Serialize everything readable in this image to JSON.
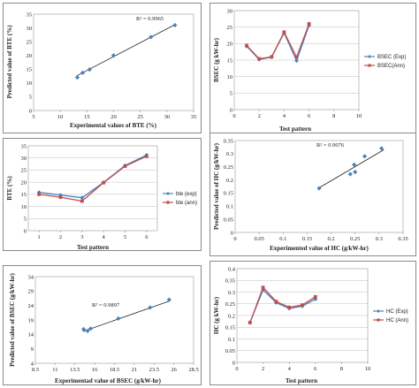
{
  "chart_data": [
    {
      "id": "c1",
      "type": "scatter",
      "xlabel": "Experimental values of BTE (%)",
      "ylabel": "Predicted value of BTE (%)",
      "annotation": "R² = 0.9965",
      "xlim": [
        5,
        35
      ],
      "ylim": [
        0,
        35
      ],
      "xticks": [
        "5",
        "10",
        "15",
        "20",
        "25",
        "30",
        "35"
      ],
      "yticks": [
        "0",
        "5",
        "10",
        "15",
        "20",
        "25",
        "30",
        "35"
      ],
      "points": [
        [
          13.2,
          12.0
        ],
        [
          14.2,
          13.7
        ],
        [
          15.5,
          14.9
        ],
        [
          20.0,
          20.0
        ],
        [
          27.0,
          26.7
        ],
        [
          31.5,
          31.0
        ]
      ],
      "trendline": [
        [
          13.0,
          12.5
        ],
        [
          31.5,
          31.2
        ]
      ],
      "marker_color": "#4f81bd",
      "line_color": "#222222"
    },
    {
      "id": "c2",
      "type": "line",
      "xlabel": "Test  pattern",
      "ylabel": "BSEC (g kW-hr)",
      "xlim": [
        0,
        10
      ],
      "ylim": [
        0,
        30
      ],
      "xticks": [
        "0",
        "2",
        "4",
        "6",
        "8",
        "10"
      ],
      "yticks": [
        "0",
        "5",
        "10",
        "15",
        "20",
        "25",
        "30"
      ],
      "series": [
        {
          "name": "BSEC (Exp)",
          "color": "#4f81bd",
          "marker": "diamond",
          "x": [
            1,
            2,
            3,
            4,
            5,
            6
          ],
          "values": [
            19.2,
            15.2,
            15.9,
            23.2,
            14.8,
            25.5
          ]
        },
        {
          "name": "BSEC(Ann)",
          "color": "#c0504d",
          "marker": "square",
          "x": [
            1,
            2,
            3,
            4,
            5,
            6
          ],
          "values": [
            19.4,
            15.4,
            16.0,
            23.5,
            15.9,
            26.0
          ]
        }
      ],
      "legend": "right"
    },
    {
      "id": "c3",
      "type": "line",
      "xlabel": "Test pattern",
      "ylabel": "BTE (%)",
      "xlim": [
        0.5,
        6.5
      ],
      "ylim": [
        0,
        35
      ],
      "categories": [
        "1",
        "2",
        "3",
        "4",
        "5",
        "6"
      ],
      "yticks": [
        "0",
        "5",
        "10",
        "15",
        "20",
        "25",
        "30",
        "35"
      ],
      "series": [
        {
          "name": "bte (exp)",
          "color": "#4f81bd",
          "marker": "diamond",
          "values": [
            15.8,
            14.7,
            13.6,
            19.9,
            26.9,
            31.2
          ]
        },
        {
          "name": "bte (ann)",
          "color": "#c0504d",
          "marker": "square",
          "values": [
            15.0,
            13.8,
            12.2,
            19.8,
            26.6,
            30.7
          ]
        }
      ],
      "legend": "right"
    },
    {
      "id": "c4",
      "type": "scatter",
      "xlabel": "Experimented value of HC (g/kW-hr)",
      "ylabel": "Predicted value of HC (g/kW-hr)",
      "annotation": "R² = 0.9076",
      "xlim": [
        0,
        0.35
      ],
      "ylim": [
        0,
        0.35
      ],
      "xticks": [
        "0",
        "0.05",
        "0.1",
        "0.15",
        "0.2",
        "0.25",
        "0.3",
        "0.35"
      ],
      "yticks": [
        "0",
        "0.05",
        "0.1",
        "0.15",
        "0.2",
        "0.25",
        "0.3",
        "0.35"
      ],
      "points": [
        [
          0.175,
          0.168
        ],
        [
          0.24,
          0.222
        ],
        [
          0.25,
          0.23
        ],
        [
          0.248,
          0.258
        ],
        [
          0.27,
          0.29
        ],
        [
          0.305,
          0.32
        ]
      ],
      "trendline": [
        [
          0.175,
          0.17
        ],
        [
          0.31,
          0.315
        ]
      ],
      "marker_color": "#4f81bd",
      "line_color": "#222222"
    },
    {
      "id": "c5",
      "type": "scatter",
      "xlabel": "Experimentad value of BSEC (g/kW-hr)",
      "ylabel": "Predicted value of BSEC (g/kW-hr)",
      "annotation": "R² = 0.9897",
      "xlim": [
        8.5,
        28.5
      ],
      "ylim": [
        4,
        34
      ],
      "xticks": [
        "8.5",
        "11",
        "13.5",
        "16",
        "18.5",
        "21",
        "23.5",
        "26",
        "28.5"
      ],
      "yticks": [
        "4",
        "9",
        "14",
        "19",
        "24",
        "29",
        "34"
      ],
      "points": [
        [
          14.6,
          15.8
        ],
        [
          15.1,
          15.2
        ],
        [
          15.5,
          16.0
        ],
        [
          19.0,
          19.5
        ],
        [
          23.0,
          23.3
        ],
        [
          25.4,
          26.0
        ]
      ],
      "trendline": [
        [
          14.5,
          15.0
        ],
        [
          25.5,
          25.6
        ]
      ],
      "marker_color": "#4f81bd",
      "line_color": "#222222"
    },
    {
      "id": "c6",
      "type": "line",
      "xlabel": "Test pattern",
      "ylabel": "HC (g kW-hr)",
      "xlim": [
        0,
        10
      ],
      "ylim": [
        0,
        0.4
      ],
      "xticks": [
        "0",
        "2",
        "4",
        "6",
        "8",
        "10"
      ],
      "yticks": [
        "0",
        "0.05",
        "0.1",
        "0.15",
        "0.2",
        "0.25",
        "0.3",
        "0.35",
        "0.4"
      ],
      "series": [
        {
          "name": "HC (Exp)",
          "color": "#4f81bd",
          "marker": "diamond",
          "x": [
            1,
            2,
            3,
            4,
            5,
            6
          ],
          "values": [
            0.17,
            0.31,
            0.255,
            0.23,
            0.24,
            0.27
          ]
        },
        {
          "name": "HC (Ann)",
          "color": "#c0504d",
          "marker": "square",
          "x": [
            1,
            2,
            3,
            4,
            5,
            6
          ],
          "values": [
            0.17,
            0.32,
            0.26,
            0.235,
            0.245,
            0.28
          ]
        }
      ],
      "legend": "right"
    }
  ]
}
